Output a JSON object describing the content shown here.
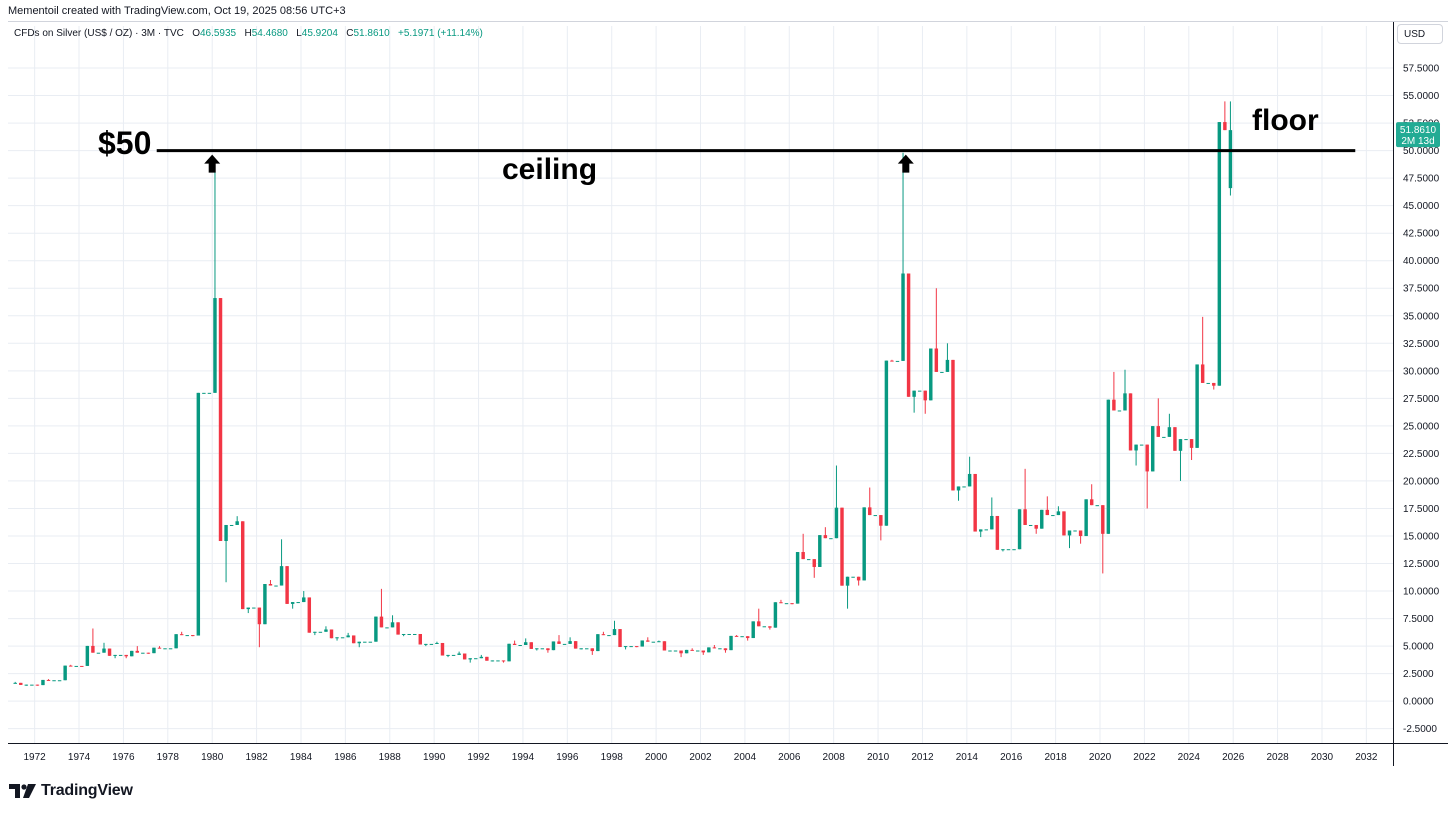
{
  "header": {
    "caption": "Mementoil created with TradingView.com, Oct 19, 2025 08:56 UTC+3",
    "symbol": "CFDs on Silver (US$ / OZ) · 3M · TVC",
    "o_key": "O",
    "o_val": "46.5935",
    "h_key": "H",
    "h_val": "54.4680",
    "l_key": "L",
    "l_val": "45.9204",
    "c_key": "C",
    "c_val": "51.8610",
    "change": "+5.1971 (+11.14%)",
    "currency": "USD"
  },
  "footer": {
    "logo_text": "TradingView"
  },
  "annotations": {
    "level_label": "$50",
    "ceiling_label": "ceiling",
    "floor_label": "floor"
  },
  "price_badge": {
    "price": "51.8610",
    "countdown": "2M 13d"
  },
  "colors": {
    "up": "#089981",
    "down": "#f23645",
    "grid": "#e9edf3",
    "annotation": "#000000",
    "badge": "#22ab94"
  },
  "chart_data": {
    "type": "candlestick",
    "title": "",
    "interval": "3M",
    "x_ticks": [
      "1972",
      "1974",
      "1976",
      "1978",
      "1980",
      "1982",
      "1984",
      "1986",
      "1988",
      "1990",
      "1992",
      "1994",
      "1996",
      "1998",
      "2000",
      "2002",
      "2004",
      "2006",
      "2008",
      "2010",
      "2012",
      "2014",
      "2016",
      "2018",
      "2020",
      "2022",
      "2024",
      "2026",
      "2028",
      "2030",
      "2032"
    ],
    "y_ticks": [
      "-2.5000",
      "0.0000",
      "2.5000",
      "5.0000",
      "7.5000",
      "10.0000",
      "12.5000",
      "15.0000",
      "17.5000",
      "20.0000",
      "22.5000",
      "25.0000",
      "27.5000",
      "30.0000",
      "32.5000",
      "35.0000",
      "37.5000",
      "40.0000",
      "42.5000",
      "45.0000",
      "47.5000",
      "50.0000",
      "52.5000",
      "55.0000",
      "57.5000"
    ],
    "x_range": [
      1970.8,
      2033.2
    ],
    "y_range": [
      -3.8,
      59.5
    ],
    "horizontal_line": {
      "value": 50,
      "x_from": 1977.5,
      "x_to": 2031.5
    },
    "arrows_up": [
      1980.0,
      2011.25
    ],
    "ohlc_yearly_points": [
      [
        1971,
        1.6,
        1.75,
        1.4,
        1.5
      ],
      [
        1972,
        1.5,
        2.0,
        1.4,
        1.9
      ],
      [
        1973,
        1.9,
        3.3,
        1.9,
        3.2
      ],
      [
        1974,
        3.2,
        6.6,
        3.2,
        4.4
      ],
      [
        1975,
        4.4,
        5.3,
        3.9,
        4.2
      ],
      [
        1976,
        4.2,
        5.0,
        3.9,
        4.4
      ],
      [
        1977,
        4.4,
        5.0,
        4.3,
        4.8
      ],
      [
        1978,
        4.8,
        6.3,
        4.8,
        6.0
      ],
      [
        1979,
        6.0,
        28.0,
        5.9,
        28.0
      ],
      [
        1980,
        28.0,
        48.5,
        10.8,
        16.0
      ],
      [
        1981,
        16.0,
        16.8,
        8.0,
        8.5
      ],
      [
        1982,
        8.5,
        11.0,
        4.9,
        10.5
      ],
      [
        1983,
        10.5,
        14.7,
        8.4,
        9.0
      ],
      [
        1984,
        9.0,
        10.0,
        6.0,
        6.3
      ],
      [
        1985,
        6.3,
        6.8,
        5.5,
        5.8
      ],
      [
        1986,
        5.8,
        6.2,
        4.9,
        5.4
      ],
      [
        1987,
        5.4,
        10.2,
        5.4,
        6.7
      ],
      [
        1988,
        6.7,
        7.8,
        5.9,
        6.1
      ],
      [
        1989,
        6.1,
        6.1,
        5.0,
        5.2
      ],
      [
        1990,
        5.2,
        5.4,
        4.0,
        4.2
      ],
      [
        1991,
        4.2,
        4.5,
        3.5,
        3.9
      ],
      [
        1992,
        3.9,
        4.2,
        3.6,
        3.7
      ],
      [
        1993,
        3.7,
        5.5,
        3.5,
        5.1
      ],
      [
        1994,
        5.1,
        5.7,
        4.6,
        4.8
      ],
      [
        1995,
        4.8,
        6.0,
        4.4,
        5.2
      ],
      [
        1996,
        5.2,
        5.8,
        4.7,
        4.8
      ],
      [
        1997,
        4.8,
        6.3,
        4.2,
        6.0
      ],
      [
        1998,
        6.0,
        7.3,
        4.7,
        5.0
      ],
      [
        1999,
        5.0,
        5.8,
        4.9,
        5.4
      ],
      [
        2000,
        5.4,
        5.5,
        4.6,
        4.6
      ],
      [
        2001,
        4.6,
        4.8,
        4.0,
        4.6
      ],
      [
        2002,
        4.6,
        5.1,
        4.2,
        4.8
      ],
      [
        2003,
        4.8,
        6.0,
        4.4,
        5.9
      ],
      [
        2004,
        5.9,
        8.4,
        5.5,
        6.8
      ],
      [
        2005,
        6.8,
        9.2,
        6.5,
        8.9
      ],
      [
        2006,
        8.9,
        15.2,
        8.8,
        12.9
      ],
      [
        2007,
        12.9,
        15.8,
        11.2,
        14.8
      ],
      [
        2008,
        14.8,
        21.4,
        8.4,
        11.3
      ],
      [
        2009,
        11.3,
        19.4,
        10.5,
        16.9
      ],
      [
        2010,
        16.9,
        31.0,
        14.6,
        30.9
      ],
      [
        2011,
        30.9,
        49.8,
        26.2,
        28.2
      ],
      [
        2012,
        28.2,
        37.5,
        26.1,
        29.9
      ],
      [
        2013,
        29.9,
        32.5,
        18.2,
        19.5
      ],
      [
        2014,
        19.5,
        22.2,
        14.9,
        15.6
      ],
      [
        2015,
        15.6,
        18.5,
        13.6,
        13.8
      ],
      [
        2016,
        13.8,
        21.1,
        13.8,
        16.0
      ],
      [
        2017,
        16.0,
        18.6,
        15.2,
        16.9
      ],
      [
        2018,
        16.9,
        17.7,
        13.9,
        15.5
      ],
      [
        2019,
        15.5,
        19.7,
        14.3,
        17.8
      ],
      [
        2020,
        17.8,
        29.9,
        11.6,
        26.4
      ],
      [
        2021,
        26.4,
        30.1,
        21.4,
        23.3
      ],
      [
        2022,
        23.3,
        27.5,
        17.5,
        24.0
      ],
      [
        2023,
        24.0,
        26.1,
        20.0,
        23.8
      ],
      [
        2024,
        23.8,
        34.9,
        21.9,
        28.9
      ],
      [
        2025,
        28.9,
        54.47,
        28.3,
        51.861
      ]
    ],
    "last_candle": {
      "open": 46.5935,
      "high": 54.468,
      "low": 45.9204,
      "close": 51.861
    }
  }
}
